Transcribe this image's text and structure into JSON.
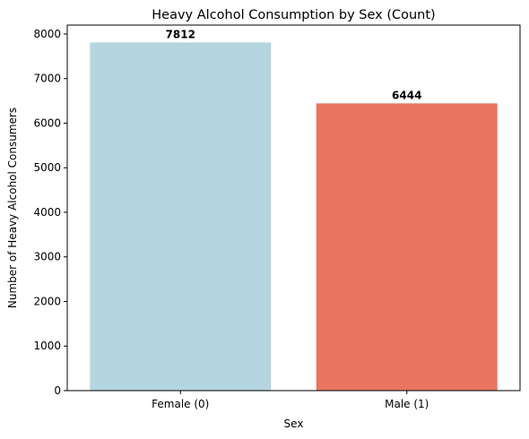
{
  "chart_data": {
    "type": "bar",
    "title": "Heavy Alcohol Consumption by Sex (Count)",
    "xlabel": "Sex",
    "ylabel": "Number of Heavy Alcohol Consumers",
    "categories": [
      "Female (0)",
      "Male (1)"
    ],
    "values": [
      7812,
      6444
    ],
    "data_labels": [
      "7812",
      "6444"
    ],
    "colors": [
      "#b5d6e0",
      "#e87461"
    ],
    "ylim": [
      0,
      8200
    ],
    "yticks": [
      0,
      1000,
      2000,
      3000,
      4000,
      5000,
      6000,
      7000,
      8000
    ],
    "ytick_labels": [
      "0",
      "1000",
      "2000",
      "3000",
      "4000",
      "5000",
      "6000",
      "7000",
      "8000"
    ],
    "grid": false,
    "legend": "none"
  }
}
